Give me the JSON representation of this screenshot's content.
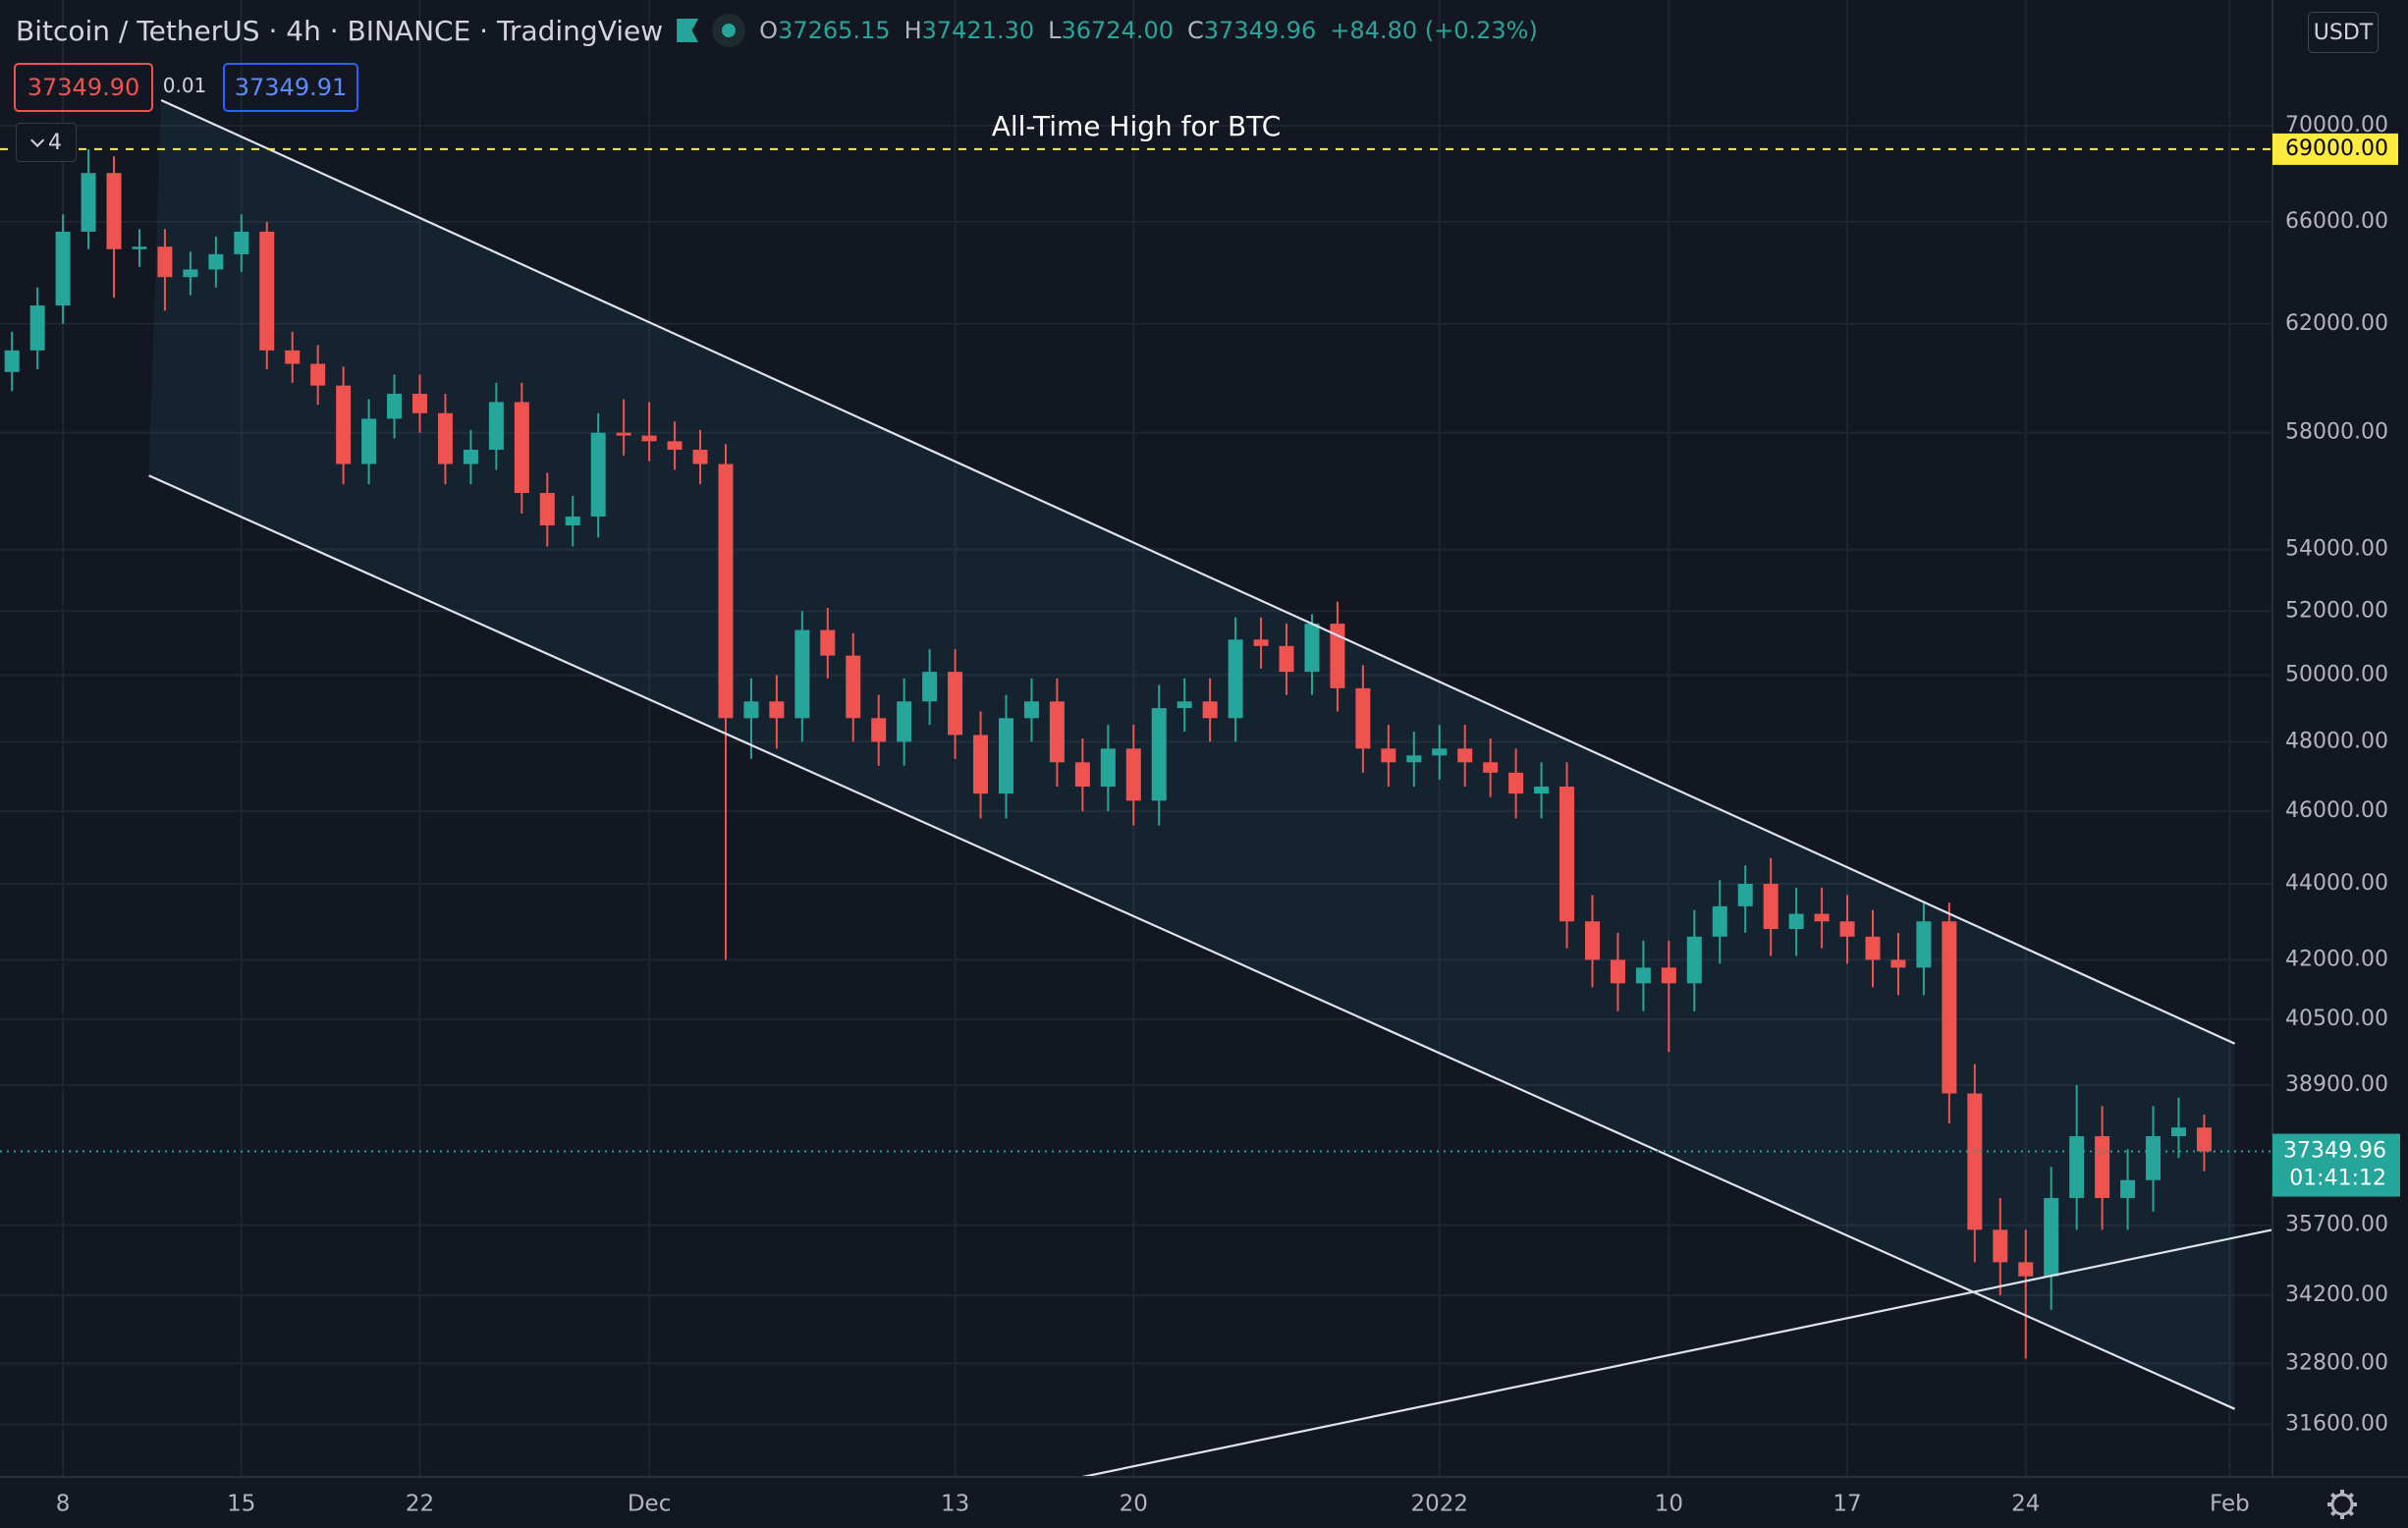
{
  "header": {
    "title": "Bitcoin / TetherUS · 4h · BINANCE · TradingView",
    "ohlc": [
      {
        "key": "O",
        "value": "37265.15"
      },
      {
        "key": "H",
        "value": "37421.30"
      },
      {
        "key": "L",
        "value": "36724.00"
      },
      {
        "key": "C",
        "value": "37349.96"
      }
    ],
    "change": "+84.80 (+0.23%)"
  },
  "order": {
    "sell": "37349.90",
    "spread": "0.01",
    "buy": "37349.91"
  },
  "indicators": 4,
  "currency": "USDT",
  "chart_data": {
    "type": "candlestick",
    "log_scale": true,
    "grid": true,
    "up_color": "#26a69a",
    "down_color": "#ef5350",
    "x": [
      -2,
      -1,
      0,
      1,
      2,
      3,
      4,
      5,
      6,
      7,
      8,
      9,
      10,
      11,
      12,
      13,
      14,
      15,
      16,
      17,
      18,
      19,
      20,
      21,
      22,
      23,
      24,
      25,
      26,
      27,
      28,
      29,
      30,
      31,
      32,
      33,
      34,
      35,
      36,
      37,
      38,
      39,
      40,
      41,
      42,
      43,
      44,
      45,
      46,
      47,
      48,
      49,
      50,
      51,
      52,
      53,
      54,
      55,
      56,
      57,
      58,
      59,
      60,
      61,
      62,
      63,
      64,
      65,
      66,
      67,
      68,
      69,
      70,
      71,
      72,
      73,
      74,
      75,
      76,
      77,
      78,
      79,
      80,
      81,
      82,
      83,
      84
    ],
    "open": [
      60200,
      61000,
      62700,
      65600,
      68000,
      64900,
      65000,
      63800,
      64100,
      64700,
      65600,
      61000,
      60500,
      59700,
      56900,
      58500,
      59400,
      58700,
      56900,
      57400,
      59100,
      55900,
      54800,
      55100,
      58000,
      57900,
      57700,
      57400,
      56900,
      48700,
      49200,
      48700,
      51400,
      50600,
      48700,
      48000,
      49200,
      50100,
      48200,
      46500,
      48700,
      49200,
      47400,
      46700,
      47800,
      46300,
      49000,
      49200,
      48700,
      51100,
      50900,
      50100,
      51600,
      49600,
      47800,
      47400,
      47600,
      47800,
      47400,
      47100,
      46500,
      46700,
      43000,
      42000,
      41400,
      41800,
      41400,
      42600,
      43400,
      44000,
      42800,
      43200,
      43000,
      42600,
      42000,
      41800,
      43000,
      38700,
      35600,
      34900,
      34600,
      36300,
      37700,
      36300,
      36700,
      37700,
      37900
    ],
    "high": [
      61700,
      63400,
      66300,
      69000,
      68700,
      65700,
      65700,
      64800,
      65400,
      66300,
      66000,
      61700,
      61200,
      60400,
      59200,
      60100,
      60100,
      59400,
      58100,
      59800,
      59800,
      56600,
      55800,
      58700,
      59200,
      59100,
      58400,
      58100,
      57600,
      49900,
      50000,
      52000,
      52100,
      51300,
      49400,
      49900,
      50800,
      50800,
      48900,
      49400,
      49900,
      49900,
      48100,
      48500,
      48500,
      49700,
      49900,
      49900,
      51800,
      51800,
      51600,
      51900,
      52300,
      50300,
      48500,
      48300,
      48500,
      48500,
      48100,
      47800,
      47400,
      47400,
      43700,
      42700,
      42500,
      42500,
      43300,
      44100,
      44500,
      44700,
      43900,
      43900,
      43700,
      43300,
      42700,
      43500,
      43500,
      39400,
      36300,
      35600,
      37000,
      38900,
      38400,
      37400,
      38400,
      38600,
      38200
    ],
    "low": [
      59500,
      60300,
      62000,
      64900,
      63000,
      64200,
      62500,
      63100,
      63400,
      64000,
      60300,
      59800,
      59000,
      56200,
      56200,
      57800,
      58000,
      56200,
      56200,
      56700,
      55200,
      54100,
      54100,
      54400,
      57200,
      57000,
      56700,
      56200,
      42000,
      47500,
      47800,
      48000,
      49900,
      48000,
      47300,
      47300,
      48500,
      47500,
      45800,
      45800,
      48000,
      46700,
      46000,
      46000,
      45600,
      45600,
      48300,
      48000,
      48000,
      50200,
      49400,
      49400,
      48900,
      47100,
      46700,
      46700,
      46900,
      46700,
      46400,
      45800,
      45800,
      42300,
      41300,
      40700,
      40700,
      39700,
      40700,
      41900,
      42700,
      42100,
      42100,
      42300,
      41900,
      41300,
      41100,
      41100,
      38000,
      34900,
      34200,
      32900,
      33900,
      35600,
      35600,
      35600,
      36000,
      37200,
      36900
    ],
    "close": [
      61000,
      62700,
      65600,
      68000,
      64900,
      65000,
      63800,
      64100,
      64700,
      65600,
      61000,
      60500,
      59700,
      56900,
      58500,
      59400,
      58700,
      56900,
      57400,
      59100,
      55900,
      54800,
      55100,
      58000,
      57900,
      57700,
      57400,
      56900,
      48700,
      49200,
      48700,
      51400,
      50600,
      48700,
      48000,
      49200,
      50100,
      48200,
      46500,
      48700,
      49200,
      47400,
      46700,
      47800,
      46300,
      49000,
      49200,
      48700,
      51100,
      50900,
      50100,
      51600,
      49600,
      47800,
      47400,
      47600,
      47800,
      47400,
      47100,
      46500,
      46700,
      43000,
      42000,
      41400,
      41800,
      41400,
      42600,
      43400,
      44000,
      42800,
      43200,
      43000,
      42600,
      42000,
      41800,
      43000,
      38700,
      35600,
      34900,
      34600,
      36300,
      37700,
      36300,
      36700,
      37700,
      37900,
      37350
    ],
    "xlim": [
      -2.47,
      86.68
    ],
    "xticks": [
      {
        "value": 0,
        "label": "8"
      },
      {
        "value": 7,
        "label": "15"
      },
      {
        "value": 14,
        "label": "22"
      },
      {
        "value": 23,
        "label": "Dec"
      },
      {
        "value": 35,
        "label": "13"
      },
      {
        "value": 42,
        "label": "20"
      },
      {
        "value": 54,
        "label": "2022"
      },
      {
        "value": 63,
        "label": "10"
      },
      {
        "value": 70,
        "label": "17"
      },
      {
        "value": 77,
        "label": "24"
      },
      {
        "value": 85,
        "label": "Feb"
      }
    ],
    "ylim": [
      30600,
      75600
    ],
    "yticks": [
      {
        "value": 70000,
        "label": "70000.00"
      },
      {
        "value": 66000,
        "label": "66000.00"
      },
      {
        "value": 62000,
        "label": "62000.00"
      },
      {
        "value": 58000,
        "label": "58000.00"
      },
      {
        "value": 54000,
        "label": "54000.00"
      },
      {
        "value": 52000,
        "label": "52000.00"
      },
      {
        "value": 50000,
        "label": "50000.00"
      },
      {
        "value": 48000,
        "label": "48000.00"
      },
      {
        "value": 46000,
        "label": "46000.00"
      },
      {
        "value": 44000,
        "label": "44000.00"
      },
      {
        "value": 42000,
        "label": "42000.00"
      },
      {
        "value": 40500,
        "label": "40500.00"
      },
      {
        "value": 38900,
        "label": "38900.00"
      },
      {
        "value": 35700,
        "label": "35700.00"
      },
      {
        "value": 34200,
        "label": "34200.00"
      },
      {
        "value": 32800,
        "label": "32800.00"
      },
      {
        "value": 31600,
        "label": "31600.00"
      }
    ],
    "hline": {
      "value": 69000,
      "label": "69000.00",
      "text": "All-Time High for BTC",
      "color": "#ffeb3b"
    },
    "last_price": {
      "value": 37349.96,
      "label": "37349.96",
      "countdown": "01:41:12",
      "color": "#26a69a"
    },
    "trendlines": [
      {
        "x": [
          3.85,
          85.2
        ],
        "y": [
          71100,
          39900
        ]
      },
      {
        "x": [
          3.37,
          85.2
        ],
        "y": [
          56500,
          31900
        ]
      },
      {
        "x": [
          40,
          86.68
        ],
        "y": [
          30600,
          35600
        ]
      }
    ]
  }
}
